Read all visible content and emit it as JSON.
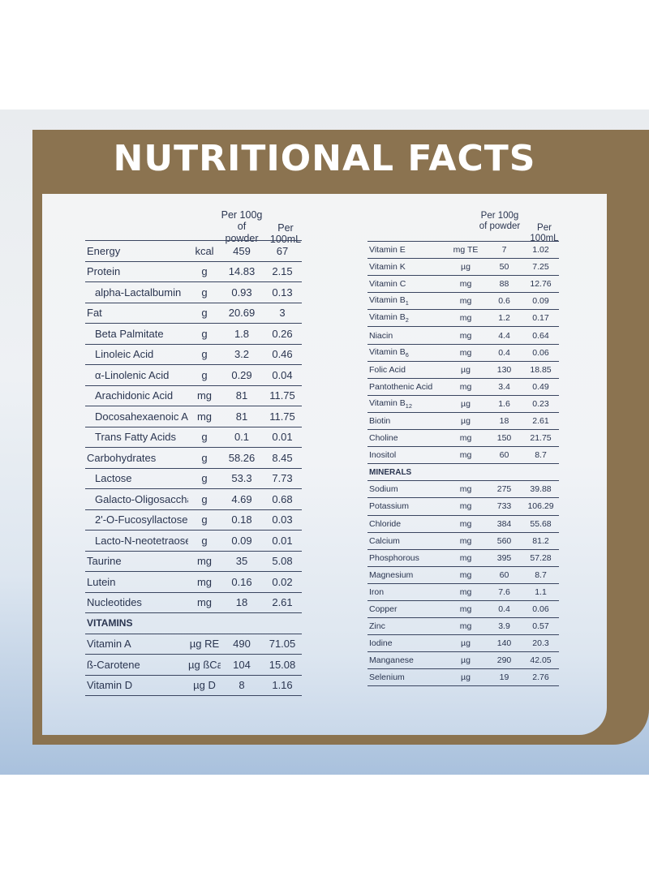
{
  "title": "NUTRITIONAL FACTS",
  "headers": {
    "per100g": "Per 100g of powder",
    "per100ml": "Per 100mL"
  },
  "left_table": [
    {
      "name": "Energy",
      "unit": "kcal",
      "v1": "459",
      "v2": "67"
    },
    {
      "name": "Protein",
      "unit": "g",
      "v1": "14.83",
      "v2": "2.15"
    },
    {
      "name": "alpha-Lactalbumin",
      "unit": "g",
      "v1": "0.93",
      "v2": "0.13",
      "indent": true
    },
    {
      "name": "Fat",
      "unit": "g",
      "v1": "20.69",
      "v2": "3"
    },
    {
      "name": "Beta Palmitate",
      "unit": "g",
      "v1": "1.8",
      "v2": "0.26",
      "indent": true
    },
    {
      "name": "Linoleic Acid",
      "unit": "g",
      "v1": "3.2",
      "v2": "0.46",
      "indent": true
    },
    {
      "name": "α-Linolenic Acid",
      "unit": "g",
      "v1": "0.29",
      "v2": "0.04",
      "indent": true
    },
    {
      "name": "Arachidonic Acid",
      "unit": "mg",
      "v1": "81",
      "v2": "11.75",
      "indent": true
    },
    {
      "name": "Docosahexaenoic Acid",
      "unit": "mg",
      "v1": "81",
      "v2": "11.75",
      "indent": true
    },
    {
      "name": "Trans Fatty Acids",
      "unit": "g",
      "v1": "0.1",
      "v2": "0.01",
      "indent": true
    },
    {
      "name": "Carbohydrates",
      "unit": "g",
      "v1": "58.26",
      "v2": "8.45"
    },
    {
      "name": "Lactose",
      "unit": "g",
      "v1": "53.3",
      "v2": "7.73",
      "indent": true
    },
    {
      "name": "Galacto-Oligosaccharides",
      "unit": "g",
      "v1": "4.69",
      "v2": "0.68",
      "indent": true
    },
    {
      "name": "2'-O-Fucosyllactose",
      "unit": "g",
      "v1": "0.18",
      "v2": "0.03",
      "indent": true
    },
    {
      "name": "Lacto-N-neotetraose",
      "unit": "g",
      "v1": "0.09",
      "v2": "0.01",
      "indent": true
    },
    {
      "name": "Taurine",
      "unit": "mg",
      "v1": "35",
      "v2": "5.08"
    },
    {
      "name": "Lutein",
      "unit": "mg",
      "v1": "0.16",
      "v2": "0.02"
    },
    {
      "name": "Nucleotides",
      "unit": "mg",
      "v1": "18",
      "v2": "2.61"
    },
    {
      "section": "VITAMINS"
    },
    {
      "name": "Vitamin A",
      "unit": "µg RE",
      "v1": "490",
      "v2": "71.05"
    },
    {
      "name": "ß-Carotene",
      "unit": "µg ßCar",
      "v1": "104",
      "v2": "15.08"
    },
    {
      "name": "Vitamin D",
      "unit": "µg D",
      "v1": "8",
      "v2": "1.16"
    }
  ],
  "right_table": [
    {
      "name": "Vitamin E",
      "unit": "mg TE",
      "v1": "7",
      "v2": "1.02"
    },
    {
      "name": "Vitamin K",
      "unit": "µg",
      "v1": "50",
      "v2": "7.25"
    },
    {
      "name": "Vitamin C",
      "unit": "mg",
      "v1": "88",
      "v2": "12.76"
    },
    {
      "name": "Vitamin B",
      "sub": "1",
      "unit": "mg",
      "v1": "0.6",
      "v2": "0.09"
    },
    {
      "name": "Vitamin B",
      "sub": "2",
      "unit": "mg",
      "v1": "1.2",
      "v2": "0.17"
    },
    {
      "name": "Niacin",
      "unit": "mg",
      "v1": "4.4",
      "v2": "0.64"
    },
    {
      "name": "Vitamin B",
      "sub": "6",
      "unit": "mg",
      "v1": "0.4",
      "v2": "0.06"
    },
    {
      "name": "Folic Acid",
      "unit": "µg",
      "v1": "130",
      "v2": "18.85"
    },
    {
      "name": "Pantothenic Acid",
      "unit": "mg",
      "v1": "3.4",
      "v2": "0.49"
    },
    {
      "name": "Vitamin B",
      "sub": "12",
      "unit": "µg",
      "v1": "1.6",
      "v2": "0.23"
    },
    {
      "name": "Biotin",
      "unit": "µg",
      "v1": "18",
      "v2": "2.61"
    },
    {
      "name": "Choline",
      "unit": "mg",
      "v1": "150",
      "v2": "21.75"
    },
    {
      "name": "Inositol",
      "unit": "mg",
      "v1": "60",
      "v2": "8.7"
    },
    {
      "section": "MINERALS"
    },
    {
      "name": "Sodium",
      "unit": "mg",
      "v1": "275",
      "v2": "39.88"
    },
    {
      "name": "Potassium",
      "unit": "mg",
      "v1": "733",
      "v2": "106.29"
    },
    {
      "name": "Chloride",
      "unit": "mg",
      "v1": "384",
      "v2": "55.68"
    },
    {
      "name": "Calcium",
      "unit": "mg",
      "v1": "560",
      "v2": "81.2"
    },
    {
      "name": "Phosphorous",
      "unit": "mg",
      "v1": "395",
      "v2": "57.28"
    },
    {
      "name": "Magnesium",
      "unit": "mg",
      "v1": "60",
      "v2": "8.7"
    },
    {
      "name": "Iron",
      "unit": "mg",
      "v1": "7.6",
      "v2": "1.1"
    },
    {
      "name": "Copper",
      "unit": "mg",
      "v1": "0.4",
      "v2": "0.06"
    },
    {
      "name": "Zinc",
      "unit": "mg",
      "v1": "3.9",
      "v2": "0.57"
    },
    {
      "name": "Iodine",
      "unit": "µg",
      "v1": "140",
      "v2": "20.3"
    },
    {
      "name": "Manganese",
      "unit": "µg",
      "v1": "290",
      "v2": "42.05"
    },
    {
      "name": "Selenium",
      "unit": "µg",
      "v1": "19",
      "v2": "2.76"
    }
  ]
}
